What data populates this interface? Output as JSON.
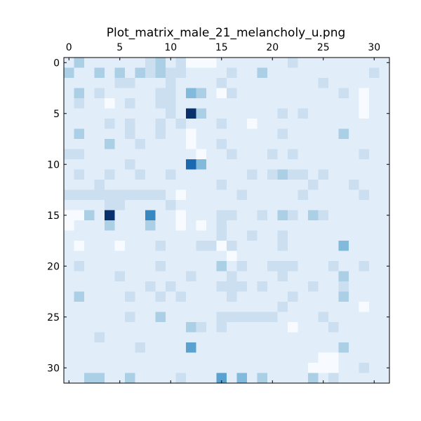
{
  "chart_data": {
    "type": "heatmap",
    "title": "Plot_matrix_male_21_melancholy_u.png",
    "xlabel": "",
    "ylabel": "",
    "colormap": "Blues",
    "vmin": 0,
    "vmax": 9,
    "x_axis_position": "top",
    "y_axis_position": "left",
    "origin": "upper",
    "xlim": [
      -0.5,
      31.5
    ],
    "ylim": [
      31.5,
      -0.5
    ],
    "x_ticks": [
      0,
      5,
      10,
      15,
      20,
      25,
      30
    ],
    "y_ticks": [
      0,
      5,
      10,
      15,
      20,
      25,
      30
    ],
    "grid": false,
    "legend": "none",
    "rows": 32,
    "cols": 32,
    "values": [
      [
        1,
        3,
        1,
        1,
        1,
        1,
        1,
        1,
        2,
        3,
        1,
        2,
        0,
        0,
        0,
        1,
        1,
        1,
        1,
        1,
        1,
        1,
        2,
        1,
        1,
        1,
        1,
        1,
        1,
        1,
        1,
        1
      ],
      [
        3,
        1,
        1,
        3,
        1,
        3,
        1,
        3,
        2,
        3,
        2,
        2,
        1,
        1,
        1,
        1,
        2,
        1,
        1,
        3,
        1,
        1,
        1,
        1,
        1,
        1,
        1,
        1,
        1,
        1,
        2,
        1
      ],
      [
        1,
        1,
        1,
        1,
        1,
        2,
        2,
        1,
        1,
        1,
        2,
        1,
        1,
        1,
        1,
        2,
        1,
        1,
        1,
        1,
        1,
        1,
        1,
        1,
        1,
        2,
        1,
        1,
        1,
        1,
        1,
        1
      ],
      [
        1,
        3,
        1,
        2,
        1,
        1,
        1,
        1,
        1,
        2,
        2,
        1,
        4,
        3,
        1,
        0,
        2,
        1,
        1,
        1,
        1,
        1,
        1,
        1,
        1,
        1,
        1,
        2,
        1,
        0,
        1,
        1
      ],
      [
        1,
        2,
        1,
        1,
        0,
        1,
        2,
        1,
        1,
        2,
        2,
        1,
        1,
        1,
        1,
        1,
        1,
        1,
        1,
        1,
        1,
        1,
        1,
        1,
        1,
        1,
        1,
        1,
        1,
        0,
        1,
        1
      ],
      [
        1,
        1,
        1,
        1,
        1,
        1,
        1,
        1,
        1,
        1,
        2,
        1,
        9,
        3,
        1,
        1,
        1,
        1,
        1,
        1,
        1,
        2,
        1,
        2,
        1,
        1,
        1,
        1,
        1,
        0,
        1,
        1
      ],
      [
        1,
        1,
        1,
        1,
        2,
        1,
        2,
        1,
        1,
        2,
        1,
        2,
        1,
        1,
        1,
        2,
        1,
        1,
        0,
        1,
        1,
        1,
        1,
        1,
        1,
        1,
        1,
        1,
        1,
        1,
        1,
        1
      ],
      [
        1,
        3,
        1,
        1,
        1,
        1,
        2,
        1,
        1,
        2,
        1,
        1,
        0,
        1,
        1,
        1,
        1,
        1,
        1,
        1,
        1,
        2,
        1,
        1,
        1,
        1,
        1,
        3,
        1,
        1,
        1,
        1
      ],
      [
        1,
        1,
        1,
        1,
        3,
        1,
        1,
        2,
        1,
        1,
        1,
        1,
        0,
        1,
        1,
        2,
        1,
        1,
        1,
        1,
        1,
        1,
        1,
        1,
        1,
        1,
        1,
        1,
        1,
        1,
        1,
        1
      ],
      [
        2,
        2,
        1,
        1,
        1,
        1,
        1,
        1,
        1,
        1,
        1,
        1,
        1,
        0,
        1,
        1,
        2,
        1,
        1,
        1,
        2,
        1,
        2,
        1,
        1,
        1,
        1,
        1,
        1,
        2,
        1,
        1
      ],
      [
        1,
        1,
        1,
        1,
        1,
        1,
        2,
        1,
        1,
        1,
        1,
        1,
        7,
        4,
        1,
        1,
        1,
        1,
        1,
        1,
        1,
        1,
        1,
        1,
        1,
        1,
        1,
        1,
        1,
        1,
        1,
        1
      ],
      [
        1,
        2,
        1,
        1,
        2,
        1,
        1,
        2,
        1,
        1,
        2,
        1,
        1,
        1,
        1,
        1,
        1,
        1,
        2,
        1,
        2,
        3,
        2,
        2,
        1,
        2,
        1,
        1,
        1,
        1,
        1,
        1
      ],
      [
        1,
        1,
        1,
        2,
        1,
        1,
        1,
        1,
        1,
        1,
        1,
        1,
        1,
        1,
        1,
        2,
        1,
        1,
        1,
        1,
        1,
        1,
        1,
        1,
        2,
        1,
        1,
        1,
        2,
        1,
        1,
        1
      ],
      [
        2,
        2,
        2,
        2,
        2,
        2,
        2,
        2,
        2,
        2,
        1,
        0,
        1,
        1,
        1,
        1,
        1,
        2,
        1,
        1,
        1,
        1,
        1,
        2,
        1,
        1,
        1,
        1,
        1,
        2,
        1,
        1
      ],
      [
        1,
        1,
        1,
        1,
        2,
        2,
        1,
        1,
        1,
        1,
        2,
        1,
        1,
        1,
        1,
        1,
        1,
        1,
        1,
        1,
        1,
        1,
        1,
        1,
        1,
        1,
        1,
        1,
        1,
        1,
        1,
        1
      ],
      [
        0,
        0,
        3,
        1,
        9,
        1,
        1,
        1,
        6,
        1,
        1,
        0,
        1,
        1,
        1,
        2,
        2,
        1,
        1,
        2,
        1,
        3,
        2,
        1,
        3,
        2,
        1,
        1,
        1,
        1,
        1,
        1
      ],
      [
        0,
        1,
        1,
        1,
        3,
        1,
        1,
        1,
        3,
        1,
        1,
        0,
        1,
        0,
        1,
        2,
        1,
        1,
        1,
        1,
        1,
        1,
        1,
        1,
        1,
        1,
        1,
        1,
        1,
        1,
        1,
        1
      ],
      [
        1,
        1,
        1,
        1,
        1,
        1,
        1,
        1,
        1,
        1,
        1,
        1,
        1,
        1,
        1,
        2,
        1,
        1,
        2,
        1,
        1,
        2,
        1,
        1,
        1,
        1,
        1,
        1,
        1,
        1,
        1,
        1
      ],
      [
        1,
        0,
        1,
        1,
        1,
        0,
        1,
        1,
        1,
        2,
        1,
        1,
        1,
        2,
        2,
        0,
        2,
        1,
        1,
        1,
        1,
        2,
        1,
        1,
        1,
        1,
        1,
        4,
        1,
        1,
        1,
        1
      ],
      [
        1,
        1,
        1,
        1,
        1,
        1,
        1,
        1,
        1,
        1,
        1,
        1,
        1,
        1,
        1,
        1,
        0,
        1,
        1,
        1,
        1,
        1,
        1,
        1,
        1,
        1,
        1,
        1,
        1,
        1,
        1,
        1
      ],
      [
        1,
        2,
        1,
        1,
        1,
        1,
        1,
        1,
        1,
        2,
        1,
        1,
        1,
        1,
        1,
        3,
        1,
        2,
        1,
        1,
        2,
        2,
        2,
        1,
        1,
        1,
        2,
        1,
        1,
        2,
        1,
        1
      ],
      [
        1,
        1,
        1,
        1,
        1,
        2,
        1,
        1,
        1,
        1,
        1,
        1,
        2,
        1,
        1,
        1,
        2,
        1,
        1,
        1,
        1,
        2,
        1,
        1,
        1,
        1,
        1,
        3,
        1,
        1,
        1,
        1
      ],
      [
        1,
        1,
        1,
        1,
        1,
        1,
        1,
        1,
        2,
        1,
        2,
        1,
        1,
        1,
        1,
        2,
        2,
        2,
        1,
        2,
        1,
        1,
        1,
        1,
        2,
        1,
        1,
        2,
        1,
        1,
        1,
        1
      ],
      [
        1,
        3,
        1,
        1,
        1,
        1,
        2,
        1,
        1,
        2,
        1,
        2,
        1,
        1,
        1,
        1,
        2,
        1,
        1,
        1,
        1,
        1,
        2,
        1,
        1,
        1,
        1,
        3,
        1,
        1,
        1,
        1
      ],
      [
        1,
        1,
        1,
        1,
        1,
        1,
        1,
        1,
        1,
        1,
        1,
        1,
        1,
        1,
        1,
        1,
        1,
        1,
        1,
        1,
        1,
        2,
        1,
        1,
        1,
        1,
        1,
        1,
        1,
        0,
        1,
        1
      ],
      [
        1,
        1,
        1,
        1,
        1,
        1,
        2,
        1,
        1,
        3,
        1,
        1,
        1,
        1,
        1,
        2,
        2,
        2,
        2,
        2,
        2,
        1,
        1,
        1,
        1,
        2,
        1,
        1,
        1,
        1,
        1,
        1
      ],
      [
        1,
        1,
        1,
        1,
        1,
        1,
        1,
        1,
        1,
        1,
        1,
        1,
        3,
        2,
        1,
        2,
        1,
        1,
        1,
        1,
        1,
        1,
        0,
        1,
        1,
        1,
        2,
        1,
        1,
        1,
        1,
        1
      ],
      [
        1,
        1,
        1,
        2,
        1,
        1,
        1,
        1,
        1,
        1,
        1,
        1,
        1,
        1,
        1,
        1,
        1,
        1,
        1,
        1,
        1,
        1,
        1,
        1,
        1,
        1,
        1,
        1,
        1,
        1,
        1,
        1
      ],
      [
        1,
        1,
        1,
        1,
        1,
        1,
        1,
        2,
        1,
        1,
        1,
        1,
        5,
        1,
        1,
        1,
        1,
        1,
        1,
        1,
        1,
        1,
        1,
        1,
        1,
        1,
        1,
        3,
        1,
        1,
        1,
        1
      ],
      [
        1,
        1,
        1,
        1,
        1,
        1,
        1,
        1,
        1,
        1,
        1,
        1,
        1,
        1,
        1,
        1,
        1,
        1,
        1,
        1,
        1,
        1,
        1,
        1,
        1,
        0,
        0,
        1,
        1,
        1,
        1,
        1
      ],
      [
        1,
        1,
        1,
        1,
        1,
        1,
        1,
        1,
        1,
        1,
        1,
        1,
        1,
        1,
        1,
        1,
        1,
        1,
        1,
        1,
        1,
        1,
        1,
        1,
        0,
        0,
        0,
        1,
        1,
        2,
        1,
        1
      ],
      [
        1,
        1,
        3,
        3,
        1,
        1,
        3,
        1,
        1,
        1,
        1,
        2,
        1,
        1,
        1,
        5,
        1,
        4,
        1,
        3,
        1,
        1,
        1,
        1,
        3,
        1,
        2,
        1,
        1,
        1,
        1,
        1
      ]
    ]
  }
}
